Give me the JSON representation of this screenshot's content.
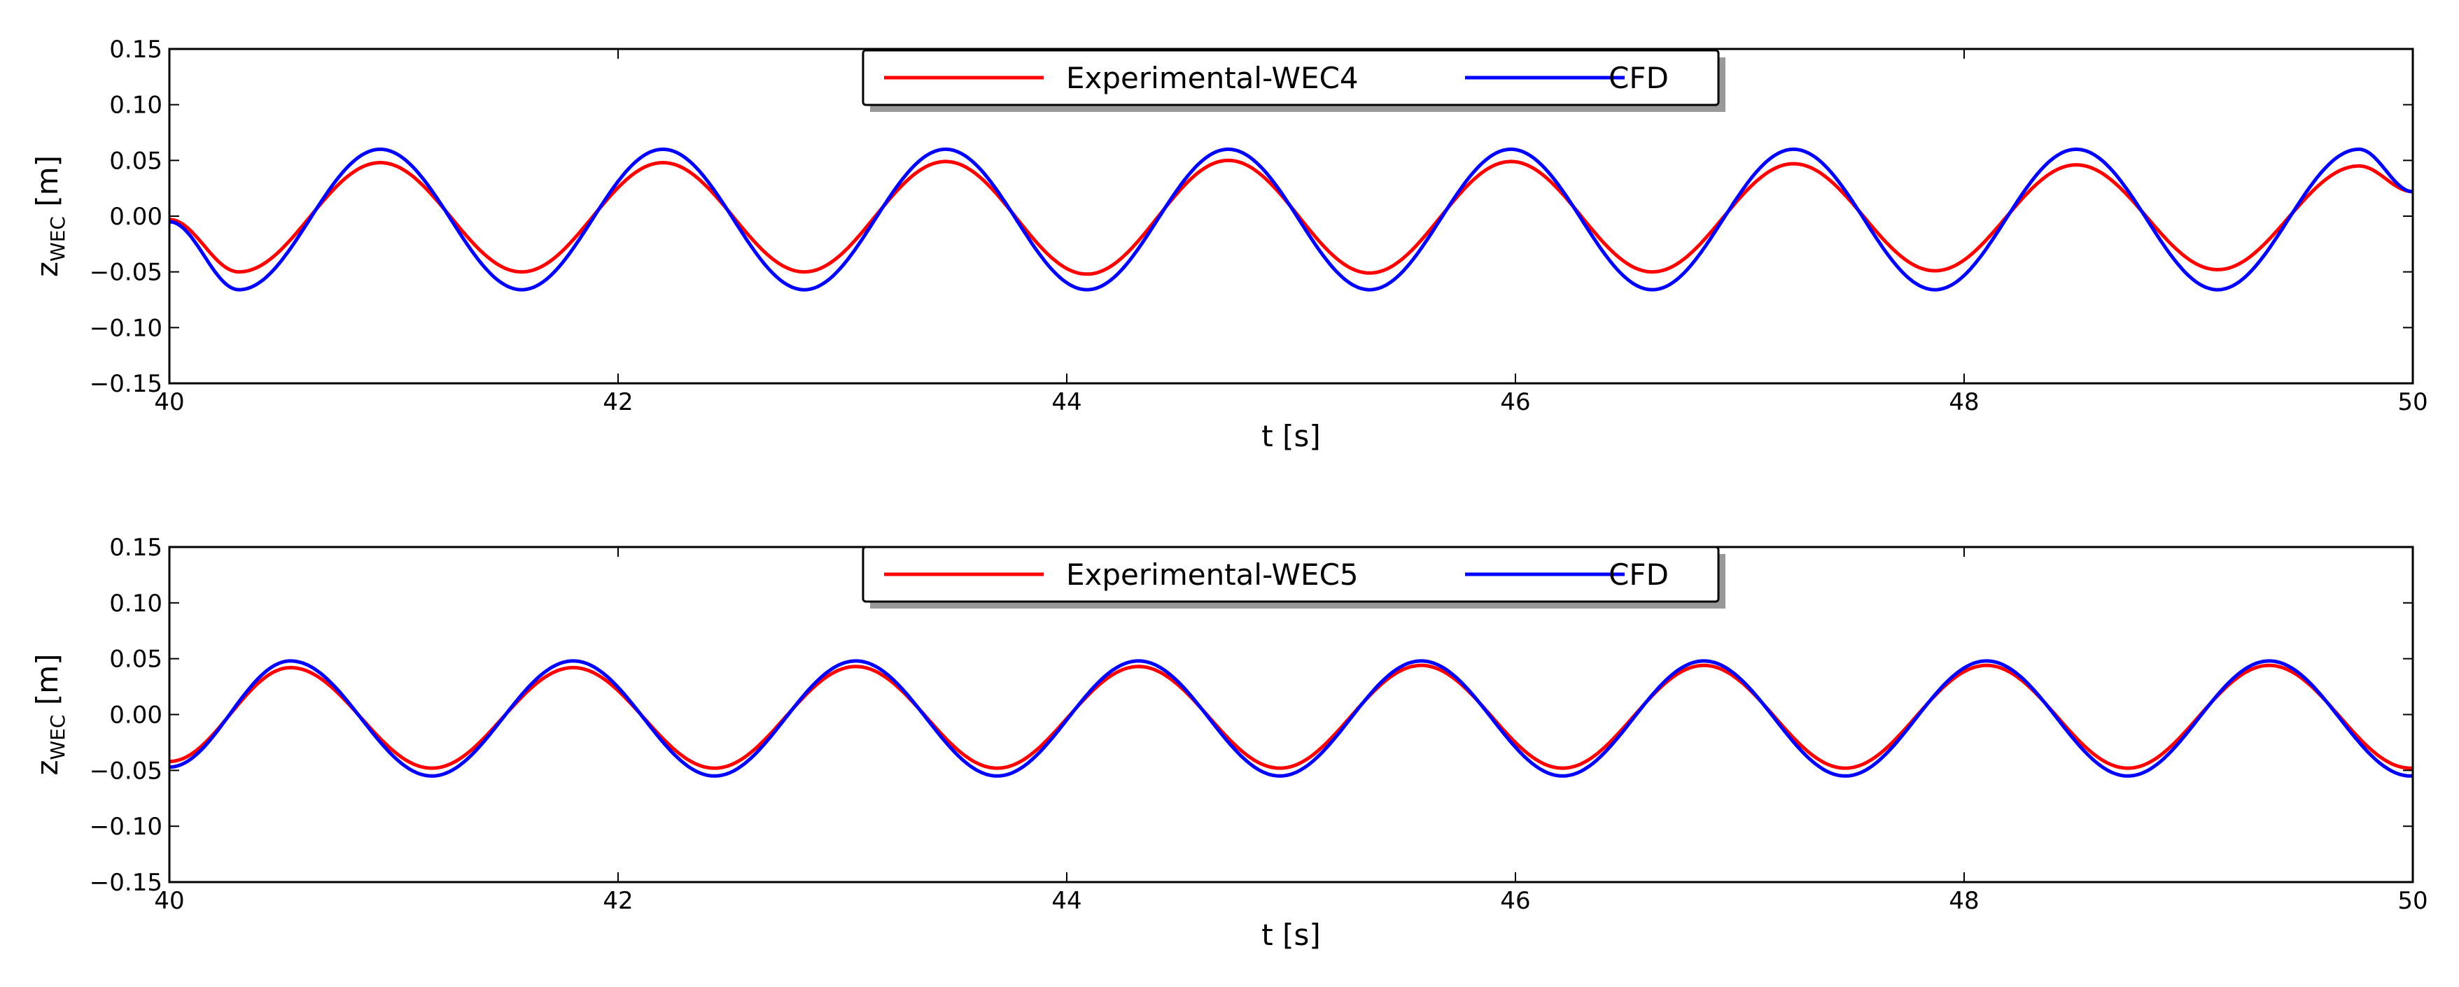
{
  "chart_data": [
    {
      "type": "line",
      "title": "",
      "xlabel": "t [s]",
      "ylabel_main": "z",
      "ylabel_sub": "WEC",
      "ylabel_unit": " [m]",
      "xlim": [
        40,
        50
      ],
      "ylim": [
        -0.15,
        0.15
      ],
      "xticks": [
        40,
        42,
        44,
        46,
        48,
        50
      ],
      "xtick_labels": [
        "40",
        "42",
        "44",
        "46",
        "48",
        "50"
      ],
      "yticks": [
        -0.15,
        -0.1,
        -0.05,
        0.0,
        0.05,
        0.1,
        0.15
      ],
      "ytick_labels": [
        "−0.15",
        "−0.10",
        "−0.05",
        "0.00",
        "0.05",
        "0.10",
        "0.15"
      ],
      "grid": false,
      "legend_position": "top-center",
      "period": 1.26,
      "series": [
        {
          "name": "Experimental-WEC4",
          "color": "#ff0000",
          "x": [
            40.0,
            40.31,
            40.94,
            41.57,
            42.2,
            42.83,
            43.46,
            44.09,
            44.72,
            45.35,
            45.98,
            46.61,
            47.24,
            47.87,
            48.5,
            49.13,
            49.76,
            50.0
          ],
          "y": [
            -0.003,
            -0.05,
            0.048,
            -0.05,
            0.048,
            -0.05,
            0.049,
            -0.052,
            0.05,
            -0.051,
            0.049,
            -0.05,
            0.047,
            -0.049,
            0.046,
            -0.048,
            0.045,
            0.022
          ]
        },
        {
          "name": "CFD",
          "color": "#0000ff",
          "x": [
            40.0,
            40.31,
            40.94,
            41.57,
            42.2,
            42.83,
            43.46,
            44.09,
            44.72,
            45.35,
            45.98,
            46.61,
            47.24,
            47.87,
            48.5,
            49.13,
            49.76,
            50.0
          ],
          "y": [
            -0.005,
            -0.066,
            0.06,
            -0.066,
            0.06,
            -0.066,
            0.06,
            -0.066,
            0.06,
            -0.066,
            0.06,
            -0.066,
            0.06,
            -0.066,
            0.06,
            -0.066,
            0.06,
            0.022
          ]
        }
      ]
    },
    {
      "type": "line",
      "title": "",
      "xlabel": "t [s]",
      "ylabel_main": "z",
      "ylabel_sub": "WEC",
      "ylabel_unit": " [m]",
      "xlim": [
        40,
        50
      ],
      "ylim": [
        -0.15,
        0.15
      ],
      "xticks": [
        40,
        42,
        44,
        46,
        48,
        50
      ],
      "xtick_labels": [
        "40",
        "42",
        "44",
        "46",
        "48",
        "50"
      ],
      "yticks": [
        -0.15,
        -0.1,
        -0.05,
        0.0,
        0.05,
        0.1,
        0.15
      ],
      "ytick_labels": [
        "−0.15",
        "−0.10",
        "−0.05",
        "0.00",
        "0.05",
        "0.10",
        "0.15"
      ],
      "grid": false,
      "legend_position": "top-center",
      "period": 1.26,
      "series": [
        {
          "name": "Experimental-WEC5",
          "color": "#ff0000",
          "x": [
            40.0,
            40.54,
            41.17,
            41.8,
            42.43,
            43.06,
            43.69,
            44.32,
            44.95,
            45.58,
            46.21,
            46.84,
            47.47,
            48.1,
            48.73,
            49.36,
            49.99,
            50.0
          ],
          "y": [
            -0.042,
            0.042,
            -0.048,
            0.042,
            -0.048,
            0.043,
            -0.048,
            0.043,
            -0.048,
            0.044,
            -0.048,
            0.044,
            -0.048,
            0.044,
            -0.048,
            0.044,
            -0.048,
            -0.048
          ]
        },
        {
          "name": "CFD",
          "color": "#0000ff",
          "x": [
            40.0,
            40.54,
            41.17,
            41.8,
            42.43,
            43.06,
            43.69,
            44.32,
            44.95,
            45.58,
            46.21,
            46.84,
            47.47,
            48.1,
            48.73,
            49.36,
            49.99,
            50.0
          ],
          "y": [
            -0.047,
            0.048,
            -0.055,
            0.048,
            -0.055,
            0.048,
            -0.055,
            0.048,
            -0.055,
            0.048,
            -0.055,
            0.048,
            -0.055,
            0.048,
            -0.055,
            0.048,
            -0.055,
            -0.055
          ]
        }
      ]
    }
  ]
}
